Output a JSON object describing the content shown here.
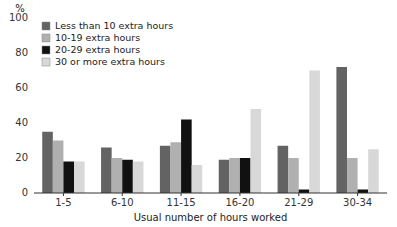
{
  "chart_data": {
    "type": "bar",
    "categories": [
      "1-5",
      "6-10",
      "11-15",
      "16-20",
      "21-29",
      "30-34"
    ],
    "series": [
      {
        "name": "Less than 10 extra hours",
        "color": "#636363",
        "values": [
          35,
          26,
          27,
          19,
          27,
          72
        ]
      },
      {
        "name": "10-19 extra hours",
        "color": "#b0b0b0",
        "values": [
          30,
          20,
          29,
          20,
          20,
          20
        ]
      },
      {
        "name": "20-29 extra hours",
        "color": "#111111",
        "values": [
          18,
          19,
          42,
          20,
          2,
          2
        ]
      },
      {
        "name": "30 or more extra hours",
        "color": "#d8d8d8",
        "values": [
          18,
          18,
          16,
          48,
          70,
          25
        ]
      }
    ],
    "xlabel": "Usual number of hours worked",
    "ylabel": "%",
    "ylim": [
      0,
      100
    ],
    "yticks": [
      0,
      20,
      40,
      60,
      80,
      100
    ],
    "grid": false,
    "legend": "upper left"
  }
}
